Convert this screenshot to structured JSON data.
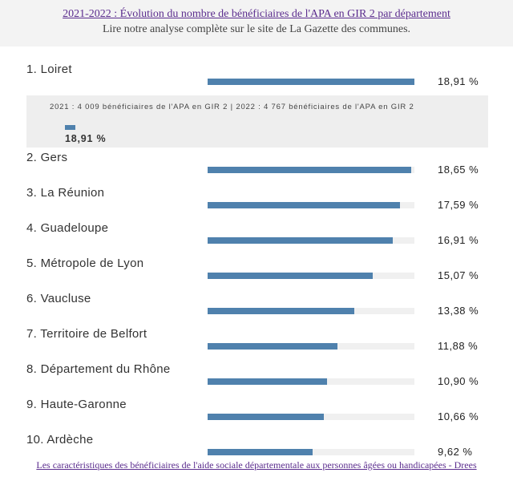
{
  "header": {
    "title": "2021-2022 : Évolution du nombre de bénéficiaires de l'APA en GIR 2 par département",
    "subtitle": "Lire notre analyse complète sur le site de La Gazette des communes."
  },
  "detail": {
    "text": "2021 : 4 009 bénéficiaires de l'APA en GIR 2 | 2022 : 4 767 bénéficiaires de l'APA en GIR 2",
    "value_label": "18,91 %"
  },
  "footer": {
    "source": "Les caractéristiques des bénéficiaires de l'aide sociale départementale aux personnes âgées ou handicapées - Drees"
  },
  "chart_data": {
    "type": "bar",
    "orientation": "horizontal",
    "categories": [
      "1. Loiret",
      "2. Gers",
      "3. La Réunion",
      "4. Guadeloupe",
      "5. Métropole de Lyon",
      "6. Vaucluse",
      "7. Territoire de Belfort",
      "8. Département du Rhône",
      "9. Haute-Garonne",
      "10. Ardèche"
    ],
    "values": [
      18.91,
      18.65,
      17.59,
      16.91,
      15.07,
      13.38,
      11.88,
      10.9,
      10.66,
      9.62
    ],
    "value_labels": [
      "18,91 %",
      "18,65 %",
      "17,59 %",
      "16,91 %",
      "15,07 %",
      "13,38 %",
      "11,88 %",
      "10,90 %",
      "10,66 %",
      "9,62 %"
    ],
    "xlim": [
      0,
      18.91
    ],
    "bar_color": "#4f81ad",
    "track_color": "#f0f0f0"
  }
}
